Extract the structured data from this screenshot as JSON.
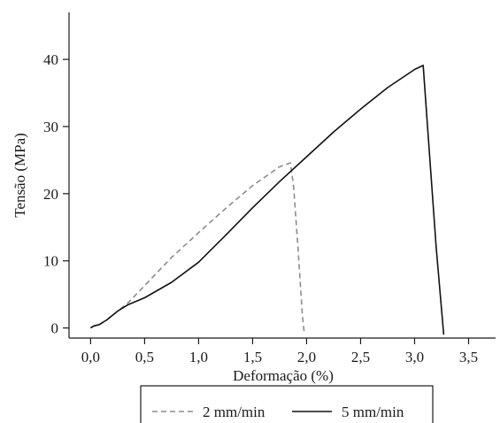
{
  "chart_data": {
    "type": "line",
    "xlabel": "Deformação (%)",
    "ylabel": "Tensão (MPa)",
    "xlim": [
      -0.2,
      3.75
    ],
    "ylim": [
      -1.5,
      47
    ],
    "x_ticks": [
      0.0,
      0.5,
      1.0,
      1.5,
      2.0,
      2.5,
      3.0,
      3.5
    ],
    "x_tick_labels": [
      "0,0",
      "0,5",
      "1,0",
      "1,5",
      "2,0",
      "2,5",
      "3,0",
      "3,5"
    ],
    "y_ticks": [
      0,
      10,
      20,
      30,
      40
    ],
    "y_tick_labels": [
      "0",
      "10",
      "20",
      "30",
      "40"
    ],
    "legend_position": "bottom-outside",
    "series": [
      {
        "name": "2 mm/min",
        "style": "dashed",
        "color": "#8c8c8c",
        "x": [
          0.0,
          0.03,
          0.08,
          0.15,
          0.25,
          0.35,
          0.5,
          0.75,
          1.0,
          1.25,
          1.5,
          1.75,
          1.85,
          1.88,
          1.92,
          1.96,
          1.98
        ],
        "y": [
          0.0,
          0.3,
          0.5,
          1.2,
          2.5,
          3.8,
          6.3,
          10.5,
          14.2,
          17.8,
          21.2,
          24.0,
          24.6,
          21.0,
          12.0,
          2.0,
          -1.0
        ]
      },
      {
        "name": "5 mm/min",
        "style": "solid",
        "color": "#111111",
        "x": [
          0.0,
          0.03,
          0.08,
          0.15,
          0.25,
          0.35,
          0.5,
          0.75,
          1.0,
          1.25,
          1.5,
          1.75,
          2.0,
          2.25,
          2.5,
          2.75,
          3.0,
          3.08,
          3.12,
          3.2,
          3.27
        ],
        "y": [
          0.0,
          0.3,
          0.5,
          1.2,
          2.5,
          3.5,
          4.5,
          6.8,
          9.8,
          13.8,
          17.9,
          21.8,
          25.5,
          29.2,
          32.6,
          35.8,
          38.5,
          39.1,
          30.0,
          12.0,
          -1.0
        ]
      }
    ]
  }
}
